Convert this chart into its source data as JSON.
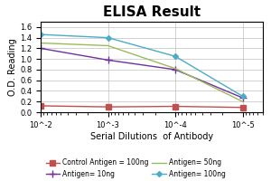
{
  "title": "ELISA Result",
  "xlabel": "Serial Dilutions  of Antibody",
  "ylabel": "O.D. Reading",
  "x_values": [
    0.01,
    0.001,
    0.0001,
    1e-05
  ],
  "x_labels": [
    "10^-2",
    "10^-3",
    "10^-4",
    "10^-5"
  ],
  "series": [
    {
      "label": "Control Antigen = 100ng",
      "color": "#c0504d",
      "marker": "s",
      "y_values": [
        0.12,
        0.1,
        0.11,
        0.09
      ],
      "linestyle": "-"
    },
    {
      "label": "Antigen= 10ng",
      "color": "#7030a0",
      "marker": "+",
      "y_values": [
        1.2,
        0.98,
        0.8,
        0.27
      ],
      "linestyle": "-"
    },
    {
      "label": "Antigen= 50ng",
      "color": "#9bbb59",
      "marker": null,
      "y_values": [
        1.3,
        1.25,
        0.82,
        0.2
      ],
      "linestyle": "-"
    },
    {
      "label": "Antigen= 100ng",
      "color": "#4bacc6",
      "marker": "D",
      "y_values": [
        1.46,
        1.4,
        1.05,
        0.3
      ],
      "linestyle": "-"
    }
  ],
  "ylim": [
    0,
    1.7
  ],
  "yticks": [
    0.0,
    0.2,
    0.4,
    0.6,
    0.8,
    1.0,
    1.2,
    1.4,
    1.6
  ],
  "background_color": "#ffffff",
  "grid_color": "#c0c0c0",
  "title_fontsize": 11,
  "label_fontsize": 7,
  "tick_fontsize": 6,
  "legend_fontsize": 5.5
}
